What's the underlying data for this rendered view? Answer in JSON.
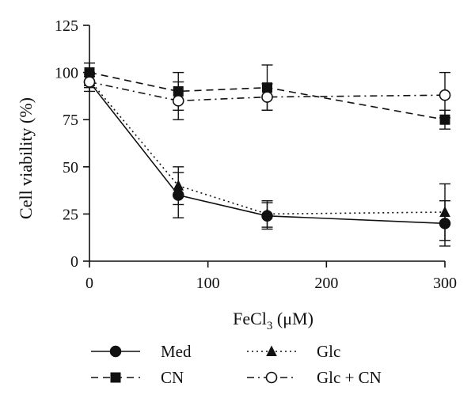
{
  "chart_data": {
    "type": "line",
    "xlabel_main": "FeCl",
    "xlabel_sub": "3",
    "xlabel_unit": " (μM)",
    "ylabel": "Cell viability (%)",
    "xlim": [
      0,
      300
    ],
    "ylim": [
      0,
      125
    ],
    "xticks": [
      0,
      100,
      200,
      300
    ],
    "yticks": [
      0,
      25,
      50,
      75,
      100,
      125
    ],
    "grid": false,
    "legend_position": "bottom",
    "series": [
      {
        "name": "Med",
        "marker": "circle-filled",
        "line_style": "solid",
        "points": [
          {
            "x": 0,
            "y": 95,
            "err": 3
          },
          {
            "x": 75,
            "y": 35,
            "err": 12
          },
          {
            "x": 150,
            "y": 24,
            "err": 7
          },
          {
            "x": 300,
            "y": 20,
            "err": 12
          }
        ]
      },
      {
        "name": "CN",
        "marker": "square-filled",
        "line_style": "dashed",
        "points": [
          {
            "x": 0,
            "y": 100,
            "err": 5
          },
          {
            "x": 75,
            "y": 90,
            "err": 10
          },
          {
            "x": 150,
            "y": 92,
            "err": 12
          },
          {
            "x": 300,
            "y": 75,
            "err": 5
          }
        ]
      },
      {
        "name": "Glc",
        "marker": "triangle-filled",
        "line_style": "dotted",
        "points": [
          {
            "x": 0,
            "y": 96,
            "err": 3
          },
          {
            "x": 75,
            "y": 40,
            "err": 10
          },
          {
            "x": 150,
            "y": 25,
            "err": 7
          },
          {
            "x": 300,
            "y": 26,
            "err": 15
          }
        ]
      },
      {
        "name": "Glc + CN",
        "marker": "circle-open",
        "line_style": "dashdot",
        "points": [
          {
            "x": 0,
            "y": 95,
            "err": 5
          },
          {
            "x": 75,
            "y": 85,
            "err": 10
          },
          {
            "x": 150,
            "y": 87,
            "err": 7
          },
          {
            "x": 300,
            "y": 88,
            "err": 12
          }
        ]
      }
    ]
  }
}
